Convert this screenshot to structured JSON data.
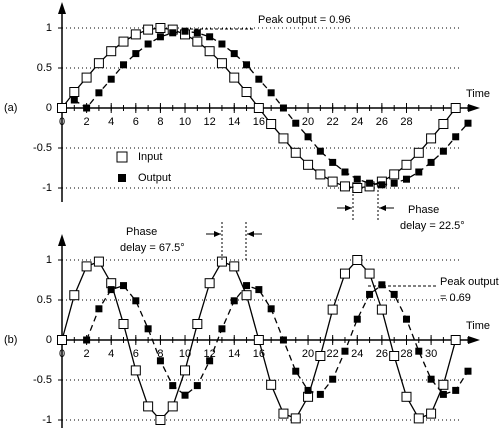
{
  "chart_data": [
    {
      "type": "line",
      "panel_label": "(a)",
      "xlabel": "Time",
      "x": [
        0,
        1,
        2,
        3,
        4,
        5,
        6,
        7,
        8,
        9,
        10,
        11,
        12,
        13,
        14,
        15,
        16,
        17,
        18,
        19,
        20,
        21,
        22,
        23,
        24,
        25,
        26,
        27,
        28,
        29,
        30,
        31,
        32,
        33
      ],
      "series": [
        {
          "name": "Input",
          "color": "#000000",
          "marker_fill": "#ffffff",
          "linestyle": "solid",
          "values": [
            0,
            0.2,
            0.38,
            0.56,
            0.71,
            0.83,
            0.92,
            0.98,
            1,
            0.98,
            0.92,
            0.83,
            0.71,
            0.56,
            0.38,
            0.2,
            0,
            -0.2,
            -0.38,
            -0.56,
            -0.71,
            -0.83,
            -0.92,
            -0.98,
            -1,
            -0.98,
            -0.92,
            -0.83,
            -0.71,
            -0.56,
            -0.38,
            -0.2,
            0,
            null
          ]
        },
        {
          "name": "Output",
          "color": "#000000",
          "marker_fill": "#000000",
          "linestyle": "dashed",
          "values": [
            null,
            0.1,
            0,
            0.19,
            0.36,
            0.54,
            0.68,
            0.8,
            0.89,
            0.94,
            0.96,
            0.94,
            0.89,
            0.8,
            0.68,
            0.54,
            0.36,
            0.19,
            0,
            -0.19,
            -0.36,
            -0.54,
            -0.68,
            -0.8,
            -0.89,
            -0.94,
            -0.96,
            -0.94,
            -0.89,
            -0.8,
            -0.68,
            -0.54,
            -0.36,
            -0.19
          ]
        }
      ],
      "xlim": [
        0,
        33
      ],
      "xticks": [
        0,
        2,
        4,
        6,
        8,
        10,
        12,
        14,
        16,
        20,
        22,
        24,
        26,
        28
      ],
      "ylim": [
        -1.1,
        1.1
      ],
      "yticks": [
        -1,
        -0.5,
        0,
        0.5,
        1
      ],
      "grid": true,
      "legend": true,
      "peak_annotation": [
        "Peak output = 0.96"
      ],
      "phase_annotation": [
        "Phase",
        "delay = 22.5°"
      ]
    },
    {
      "type": "line",
      "panel_label": "(b)",
      "xlabel": "Time",
      "x": [
        0,
        1,
        2,
        3,
        4,
        5,
        6,
        7,
        8,
        9,
        10,
        11,
        12,
        13,
        14,
        15,
        16,
        17,
        18,
        19,
        20,
        21,
        22,
        23,
        24,
        25,
        26,
        27,
        28,
        29,
        30,
        31,
        32,
        33
      ],
      "series": [
        {
          "name": "Input",
          "color": "#000000",
          "marker_fill": "#ffffff",
          "linestyle": "solid",
          "values": [
            0,
            0.56,
            0.92,
            0.98,
            0.71,
            0.2,
            -0.38,
            -0.83,
            -1,
            -0.83,
            -0.38,
            0.2,
            0.71,
            0.98,
            0.92,
            0.56,
            0,
            -0.56,
            -0.92,
            -0.98,
            -0.71,
            -0.2,
            0.38,
            0.83,
            1,
            0.83,
            0.38,
            -0.2,
            -0.71,
            -0.98,
            -0.92,
            -0.56,
            0,
            null
          ]
        },
        {
          "name": "Output",
          "color": "#000000",
          "marker_fill": "#000000",
          "linestyle": "dashed",
          "values": [
            null,
            null,
            0,
            0.39,
            0.63,
            0.68,
            0.49,
            0.14,
            -0.26,
            -0.57,
            -0.69,
            -0.57,
            -0.26,
            0.14,
            0.49,
            0.68,
            0.63,
            0.39,
            0,
            -0.39,
            -0.63,
            -0.68,
            -0.49,
            -0.14,
            0.26,
            0.57,
            0.69,
            0.57,
            0.26,
            -0.14,
            -0.49,
            -0.68,
            -0.63,
            -0.39
          ]
        }
      ],
      "xlim": [
        0,
        33
      ],
      "xticks": [
        0,
        2,
        4,
        6,
        8,
        10,
        12,
        14,
        16,
        20,
        22,
        24,
        26,
        28,
        30
      ],
      "ylim": [
        -1.1,
        1.1
      ],
      "yticks": [
        -1,
        -0.5,
        0,
        0.5,
        1
      ],
      "grid": true,
      "legend": false,
      "peak_annotation": [
        "Peak output",
        "= 0.69"
      ],
      "phase_annotation": [
        "Phase",
        "delay = 67.5°"
      ]
    }
  ]
}
